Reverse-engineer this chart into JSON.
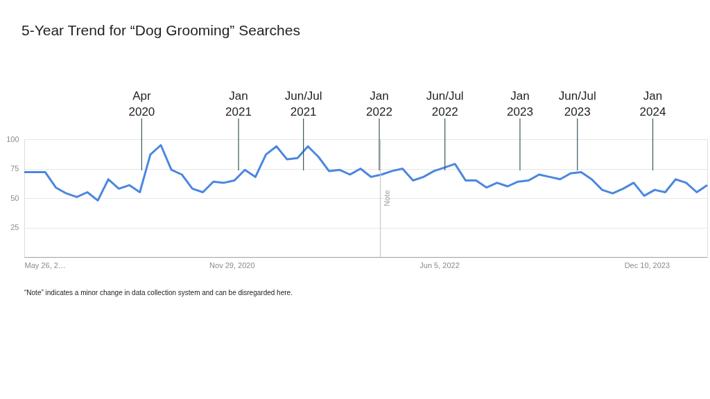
{
  "chart_data": {
    "type": "line",
    "title": "5-Year Trend for “Dog Grooming” Searches",
    "x": [
      "2019-05-26",
      "2019-06-23",
      "2019-07-21",
      "2019-08-18",
      "2019-09-15",
      "2019-10-13",
      "2019-11-10",
      "2019-12-08",
      "2020-01-05",
      "2020-02-02",
      "2020-03-01",
      "2020-03-29",
      "2020-04-26",
      "2020-05-24",
      "2020-06-21",
      "2020-07-19",
      "2020-08-16",
      "2020-09-13",
      "2020-10-11",
      "2020-11-08",
      "2020-12-06",
      "2021-01-03",
      "2021-01-31",
      "2021-02-28",
      "2021-03-28",
      "2021-04-25",
      "2021-05-23",
      "2021-06-20",
      "2021-07-18",
      "2021-08-15",
      "2021-09-12",
      "2021-10-10",
      "2021-11-07",
      "2021-12-05",
      "2022-01-02",
      "2022-01-30",
      "2022-02-27",
      "2022-03-27",
      "2022-04-24",
      "2022-05-22",
      "2022-06-19",
      "2022-07-17",
      "2022-08-14",
      "2022-09-11",
      "2022-10-09",
      "2022-11-06",
      "2022-12-04",
      "2023-01-01",
      "2023-01-29",
      "2023-02-26",
      "2023-03-26",
      "2023-04-23",
      "2023-05-21",
      "2023-06-18",
      "2023-07-16",
      "2023-08-13",
      "2023-09-10",
      "2023-10-08",
      "2023-11-05",
      "2023-12-03",
      "2023-12-31",
      "2024-01-28",
      "2024-02-25",
      "2024-03-24",
      "2024-04-21",
      "2024-05-19"
    ],
    "series": [
      {
        "color": "#4a86e0",
        "values": [
          72,
          72,
          72,
          59,
          54,
          51,
          55,
          48,
          66,
          58,
          61,
          55,
          87,
          95,
          74,
          70,
          58,
          55,
          64,
          63,
          65,
          74,
          68,
          87,
          94,
          83,
          84,
          94,
          85,
          73,
          74,
          70,
          75,
          68,
          70,
          73,
          75,
          65,
          68,
          73,
          76,
          79,
          65,
          65,
          59,
          63,
          60,
          64,
          65,
          70,
          68,
          66,
          71,
          72,
          66,
          57,
          54,
          58,
          63,
          52,
          57,
          55,
          66,
          63,
          55,
          61
        ]
      }
    ],
    "xlim": [
      "2019-05-26",
      "2024-05-19"
    ],
    "xticks": [
      {
        "value": "2019-05-26",
        "label": "May 26, 2…"
      },
      {
        "value": "2020-11-29",
        "label": "Nov 29, 2020"
      },
      {
        "value": "2022-06-05",
        "label": "Jun 5, 2022"
      },
      {
        "value": "2023-12-10",
        "label": "Dec 10, 2023"
      }
    ],
    "ylim": [
      0,
      100
    ],
    "yticks": [
      25,
      50,
      75,
      100
    ],
    "grid": "y",
    "marker": "none",
    "line_style": "solid",
    "ref_lines": [
      {
        "axis": "x",
        "value": "2020-04-03",
        "label": "Apr\n2020",
        "color": "#37575a"
      },
      {
        "axis": "x",
        "value": "2020-12-17",
        "label": "Jan\n2021",
        "color": "#37575a"
      },
      {
        "axis": "x",
        "value": "2021-06-08",
        "label": "Jun/Jul\n2021",
        "color": "#37575a"
      },
      {
        "axis": "x",
        "value": "2021-12-27",
        "label": "Jan\n2022",
        "color": "#37575a"
      },
      {
        "axis": "x",
        "value": "2022-06-20",
        "label": "Jun/Jul\n2022",
        "color": "#37575a"
      },
      {
        "axis": "x",
        "value": "2023-01-06",
        "label": "Jan\n2023",
        "color": "#37575a"
      },
      {
        "axis": "x",
        "value": "2023-06-08",
        "label": "Jun/Jul\n2023",
        "color": "#37575a"
      },
      {
        "axis": "x",
        "value": "2023-12-26",
        "label": "Jan\n2024",
        "color": "#37575a"
      },
      {
        "axis": "x",
        "value": "2021-12-30",
        "color": "#c8c8c8"
      }
    ],
    "annotations": [
      {
        "text": "Note",
        "x": "2021-12-30",
        "y": 50
      },
      "“Note” indicates a minor change in data collection system and can be disregarded here."
    ]
  }
}
